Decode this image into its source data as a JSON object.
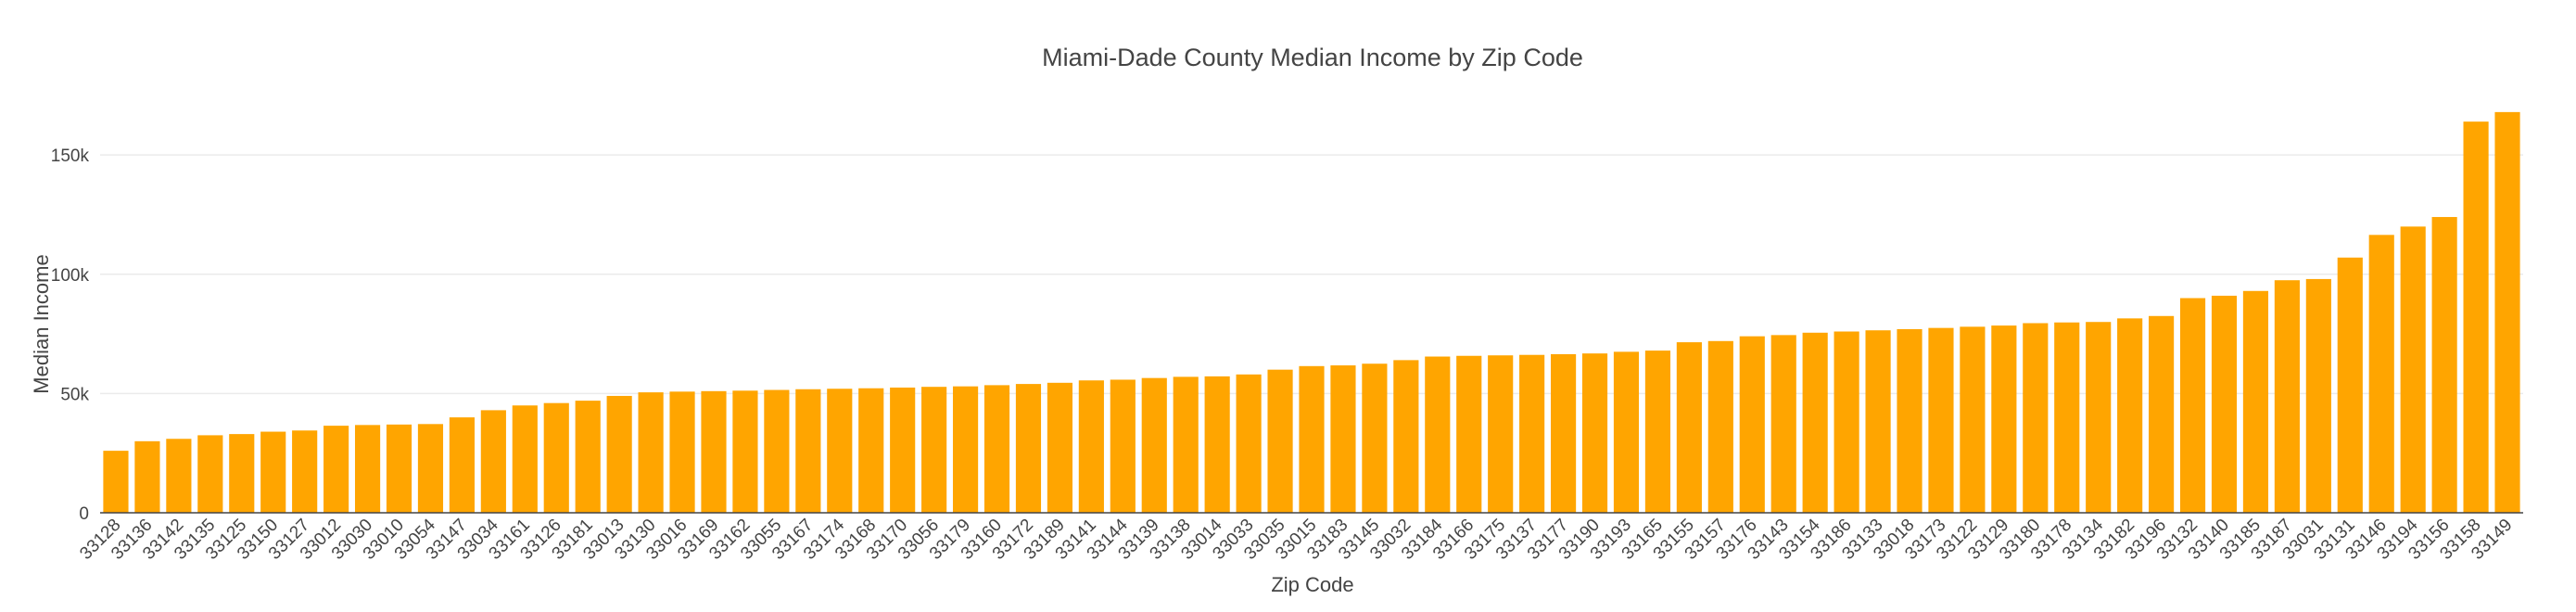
{
  "chart_data": {
    "type": "bar",
    "title": "Miami-Dade County Median Income by Zip Code",
    "xlabel": "Zip Code",
    "ylabel": "Median Income",
    "ylim": [
      0,
      180000
    ],
    "yticks": [
      {
        "value": 0,
        "label": "0"
      },
      {
        "value": 50000,
        "label": "50k"
      },
      {
        "value": 100000,
        "label": "100k"
      },
      {
        "value": 150000,
        "label": "150k"
      }
    ],
    "grid": true,
    "bar_color": "#FFA500",
    "categories": [
      "33128",
      "33136",
      "33142",
      "33135",
      "33125",
      "33150",
      "33127",
      "33012",
      "33030",
      "33010",
      "33054",
      "33147",
      "33034",
      "33161",
      "33126",
      "33181",
      "33013",
      "33130",
      "33016",
      "33169",
      "33162",
      "33055",
      "33167",
      "33174",
      "33168",
      "33170",
      "33056",
      "33179",
      "33160",
      "33172",
      "33189",
      "33141",
      "33144",
      "33139",
      "33138",
      "33014",
      "33033",
      "33035",
      "33015",
      "33183",
      "33145",
      "33032",
      "33184",
      "33166",
      "33175",
      "33137",
      "33177",
      "33190",
      "33193",
      "33165",
      "33155",
      "33157",
      "33176",
      "33143",
      "33154",
      "33186",
      "33133",
      "33018",
      "33173",
      "33122",
      "33129",
      "33180",
      "33178",
      "33134",
      "33182",
      "33196",
      "33132",
      "33140",
      "33185",
      "33187",
      "33031",
      "33131",
      "33146",
      "33194",
      "33156",
      "33158",
      "33149"
    ],
    "values": [
      26000,
      30000,
      31000,
      32500,
      33000,
      34000,
      34500,
      36500,
      36800,
      37000,
      37200,
      40000,
      43000,
      45000,
      46000,
      47000,
      49000,
      50500,
      50800,
      51000,
      51200,
      51500,
      51800,
      52000,
      52200,
      52500,
      52800,
      53000,
      53500,
      54000,
      54500,
      55500,
      55800,
      56500,
      57000,
      57200,
      58000,
      60000,
      61500,
      61800,
      62500,
      64000,
      65500,
      65800,
      66000,
      66200,
      66500,
      66800,
      67500,
      68000,
      71500,
      72000,
      74000,
      74500,
      75500,
      76000,
      76500,
      77000,
      77500,
      78000,
      78500,
      79500,
      79800,
      80000,
      81500,
      82500,
      90000,
      91000,
      93000,
      97500,
      98000,
      107000,
      116500,
      120000,
      124000,
      164000,
      168000
    ]
  }
}
